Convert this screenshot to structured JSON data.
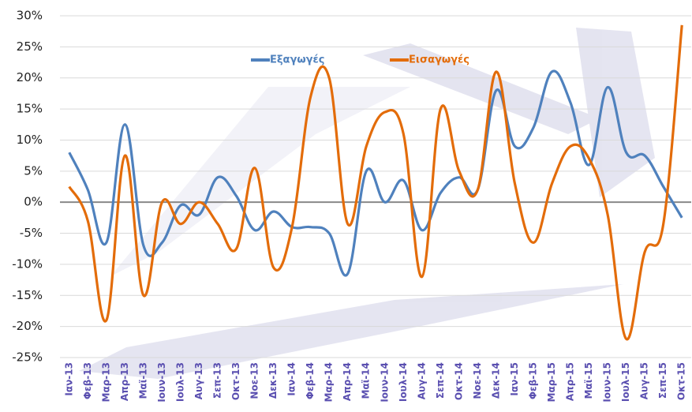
{
  "chart_data": {
    "type": "line",
    "categories": [
      "Ιαν-13",
      "Φεβ-13",
      "Μαρ-13",
      "Απρ-13",
      "Μαϊ-13",
      "Ιουν-13",
      "Ιουλ-13",
      "Αυγ-13",
      "Σεπ-13",
      "Οκτ-13",
      "Νοε-13",
      "Δεκ-13",
      "Ιαν-14",
      "Φεβ-14",
      "Μαρ-14",
      "Απρ-14",
      "Μαϊ-14",
      "Ιουν-14",
      "Ιουλ-14",
      "Αυγ-14",
      "Σεπ-14",
      "Οκτ-14",
      "Νοε-14",
      "Δεκ-14",
      "Ιαν-15",
      "Φεβ-15",
      "Μαρ-15",
      "Απρ-15",
      "Μαϊ-15",
      "Ιουν-15",
      "Ιουλ-15",
      "Αυγ-15",
      "Σεπ-15",
      "Οκτ-15"
    ],
    "series": [
      {
        "name": "Εξαγωγές",
        "color": "#4f81bd",
        "values": [
          8,
          2,
          -6.5,
          12.5,
          -7,
          -6.5,
          -0.5,
          -2,
          4,
          1,
          -4.5,
          -1.5,
          -4,
          -4,
          -5,
          -11.5,
          5,
          0,
          3.5,
          -4.5,
          1.5,
          4,
          2,
          18,
          9,
          12,
          21,
          16,
          6,
          18.5,
          8,
          7.5,
          2.5,
          -2.5
        ]
      },
      {
        "name": "Εισαγωγές",
        "color": "#e36c0a",
        "values": [
          2.5,
          -3,
          -19,
          7.5,
          -15,
          0,
          -3.5,
          0,
          -3.5,
          -7.5,
          5.5,
          -10.5,
          -4,
          17,
          20,
          -3.5,
          9,
          14.5,
          11,
          -12,
          15,
          5,
          2,
          21,
          3,
          -6.5,
          3,
          9,
          7,
          -2,
          -22,
          -8,
          -3.5,
          28.5
        ]
      }
    ],
    "ylim": [
      -25,
      30
    ],
    "yticks": [
      {
        "value": -25,
        "label": "-25%"
      },
      {
        "value": -20,
        "label": "-20%"
      },
      {
        "value": -15,
        "label": "-15%"
      },
      {
        "value": -10,
        "label": "-10%"
      },
      {
        "value": -5,
        "label": "-5%"
      },
      {
        "value": 0,
        "label": "0%"
      },
      {
        "value": 5,
        "label": "5%"
      },
      {
        "value": 10,
        "label": "10%"
      },
      {
        "value": 15,
        "label": "15%"
      },
      {
        "value": 20,
        "label": "20%"
      },
      {
        "value": 25,
        "label": "25%"
      },
      {
        "value": 30,
        "label": "30%"
      }
    ],
    "grid": true
  }
}
